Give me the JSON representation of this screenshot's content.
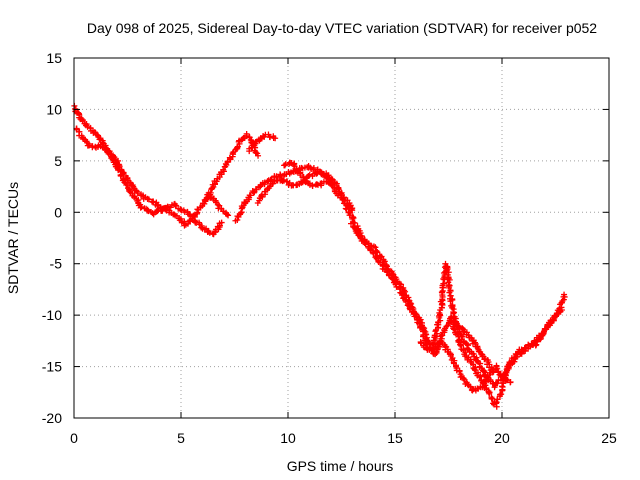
{
  "chart_data": {
    "type": "scatter",
    "title": "Day 098 of 2025, Sidereal Day-to-day VTEC variation (SDTVAR) for receiver p052",
    "xlabel": "GPS time / hours",
    "ylabel": "SDTVAR / TECUs",
    "xlim": [
      0,
      25
    ],
    "ylim": [
      -20,
      15
    ],
    "xticks": [
      0,
      5,
      10,
      15,
      20,
      25
    ],
    "yticks": [
      -20,
      -15,
      -10,
      -5,
      0,
      5,
      10,
      15
    ],
    "grid": true,
    "marker": "+",
    "color": "#ff0000",
    "series": [
      {
        "name": "track-1",
        "points": [
          [
            0.0,
            10.3
          ],
          [
            0.2,
            9.5
          ],
          [
            0.5,
            8.6
          ],
          [
            0.8,
            8.0
          ],
          [
            1.2,
            7.2
          ],
          [
            1.6,
            6.0
          ],
          [
            2.0,
            5.0
          ],
          [
            2.4,
            3.6
          ],
          [
            2.8,
            2.3
          ],
          [
            3.3,
            1.4
          ],
          [
            3.8,
            0.9
          ],
          [
            4.3,
            0.2
          ],
          [
            4.8,
            -0.4
          ],
          [
            5.2,
            -1.2
          ],
          [
            5.6,
            -0.4
          ],
          [
            6.0,
            0.8
          ],
          [
            6.4,
            1.6
          ],
          [
            6.8,
            0.5
          ],
          [
            7.2,
            -0.3
          ]
        ]
      },
      {
        "name": "track-2",
        "points": [
          [
            0.1,
            8.2
          ],
          [
            0.4,
            7.2
          ],
          [
            0.8,
            6.3
          ],
          [
            1.3,
            6.5
          ],
          [
            1.8,
            5.3
          ],
          [
            2.3,
            3.2
          ],
          [
            2.7,
            1.8
          ],
          [
            3.2,
            0.4
          ],
          [
            3.7,
            -0.1
          ],
          [
            4.2,
            0.3
          ],
          [
            4.7,
            0.7
          ],
          [
            5.2,
            0.1
          ],
          [
            5.7,
            -0.9
          ],
          [
            6.2,
            -1.8
          ],
          [
            6.5,
            -2.2
          ],
          [
            6.9,
            -1.0
          ]
        ]
      },
      {
        "name": "track-3",
        "points": [
          [
            6.2,
            1.5
          ],
          [
            6.6,
            3.0
          ],
          [
            7.0,
            4.2
          ],
          [
            7.4,
            5.6
          ],
          [
            7.8,
            7.0
          ],
          [
            8.1,
            7.5
          ],
          [
            8.4,
            6.5
          ],
          [
            8.6,
            5.5
          ]
        ]
      },
      {
        "name": "track-4",
        "points": [
          [
            8.2,
            6.0
          ],
          [
            8.6,
            7.0
          ],
          [
            9.0,
            7.5
          ],
          [
            9.4,
            7.2
          ]
        ]
      },
      {
        "name": "track-5",
        "points": [
          [
            7.6,
            -0.8
          ],
          [
            7.9,
            0.5
          ],
          [
            8.2,
            1.5
          ],
          [
            8.6,
            2.4
          ],
          [
            9.0,
            3.0
          ],
          [
            9.4,
            3.4
          ],
          [
            9.8,
            3.7
          ],
          [
            10.2,
            3.9
          ],
          [
            10.6,
            4.2
          ],
          [
            11.0,
            4.4
          ],
          [
            11.4,
            4.1
          ],
          [
            11.8,
            3.3
          ],
          [
            12.2,
            2.2
          ],
          [
            12.6,
            1.1
          ],
          [
            13.0,
            0.2
          ]
        ]
      },
      {
        "name": "track-6",
        "points": [
          [
            8.6,
            1.0
          ],
          [
            9.0,
            2.2
          ],
          [
            9.4,
            3.1
          ],
          [
            9.8,
            3.1
          ],
          [
            10.2,
            2.6
          ],
          [
            10.6,
            2.8
          ],
          [
            11.0,
            3.5
          ],
          [
            11.4,
            3.9
          ],
          [
            11.8,
            3.7
          ],
          [
            12.2,
            2.8
          ],
          [
            12.6,
            1.4
          ],
          [
            13.0,
            0.4
          ]
        ]
      },
      {
        "name": "track-7",
        "points": [
          [
            9.8,
            4.5
          ],
          [
            10.2,
            4.9
          ],
          [
            10.6,
            3.6
          ],
          [
            11.0,
            2.7
          ],
          [
            11.4,
            2.6
          ],
          [
            11.8,
            3.0
          ],
          [
            12.2,
            2.9
          ]
        ]
      },
      {
        "name": "track-8",
        "points": [
          [
            12.7,
            0.3
          ],
          [
            13.0,
            -0.5
          ],
          [
            13.3,
            -1.8
          ],
          [
            13.6,
            -2.8
          ],
          [
            14.0,
            -3.4
          ],
          [
            14.3,
            -4.2
          ],
          [
            14.6,
            -5.3
          ],
          [
            15.0,
            -6.3
          ],
          [
            15.3,
            -7.3
          ],
          [
            15.6,
            -8.5
          ],
          [
            15.9,
            -9.8
          ],
          [
            16.2,
            -11.3
          ],
          [
            16.5,
            -12.8
          ],
          [
            16.8,
            -13.8
          ],
          [
            17.0,
            -13.3
          ],
          [
            17.3,
            -11.5
          ],
          [
            17.6,
            -10.4
          ],
          [
            17.9,
            -12.0
          ],
          [
            18.2,
            -13.5
          ],
          [
            18.6,
            -14.8
          ],
          [
            19.0,
            -16.2
          ],
          [
            19.4,
            -17.6
          ],
          [
            19.7,
            -18.8
          ],
          [
            20.0,
            -17.3
          ],
          [
            20.3,
            -15.0
          ],
          [
            20.7,
            -14.0
          ],
          [
            21.2,
            -13.2
          ],
          [
            21.7,
            -12.2
          ],
          [
            22.2,
            -11.0
          ],
          [
            22.6,
            -10.0
          ],
          [
            22.9,
            -8.0
          ]
        ]
      },
      {
        "name": "track-9",
        "points": [
          [
            13.0,
            -1.2
          ],
          [
            13.4,
            -2.5
          ],
          [
            13.8,
            -3.5
          ],
          [
            14.2,
            -4.5
          ],
          [
            14.6,
            -5.8
          ],
          [
            15.0,
            -6.8
          ],
          [
            15.4,
            -8.2
          ],
          [
            15.8,
            -9.5
          ],
          [
            16.2,
            -10.5
          ],
          [
            16.5,
            -12.4
          ],
          [
            16.8,
            -13.0
          ],
          [
            17.1,
            -10.0
          ],
          [
            17.4,
            -5.0
          ],
          [
            17.7,
            -9.5
          ],
          [
            18.0,
            -11.8
          ],
          [
            18.4,
            -13.1
          ],
          [
            18.8,
            -14.3
          ],
          [
            19.2,
            -15.8
          ],
          [
            19.6,
            -16.9
          ],
          [
            20.0,
            -16.2
          ],
          [
            20.4,
            -14.5
          ],
          [
            20.8,
            -13.5
          ],
          [
            21.2,
            -13.0
          ],
          [
            21.6,
            -12.8
          ],
          [
            22.0,
            -11.5
          ],
          [
            22.4,
            -10.2
          ],
          [
            22.8,
            -9.5
          ]
        ]
      },
      {
        "name": "track-10",
        "points": [
          [
            16.2,
            -12.5
          ],
          [
            16.5,
            -13.5
          ],
          [
            16.8,
            -13.2
          ],
          [
            17.1,
            -12.5
          ],
          [
            17.4,
            -13.3
          ],
          [
            17.7,
            -14.4
          ],
          [
            18.0,
            -15.6
          ],
          [
            18.3,
            -16.5
          ],
          [
            18.6,
            -17.3
          ],
          [
            19.0,
            -17.1
          ],
          [
            19.4,
            -15.8
          ],
          [
            19.7,
            -15.0
          ],
          [
            20.0,
            -16.0
          ],
          [
            20.4,
            -16.5
          ]
        ]
      },
      {
        "name": "track-11",
        "points": [
          [
            17.6,
            -10.2
          ],
          [
            18.0,
            -11.0
          ],
          [
            18.4,
            -12.0
          ],
          [
            18.8,
            -13.0
          ],
          [
            19.2,
            -14.2
          ],
          [
            19.6,
            -15.5
          ]
        ]
      }
    ]
  }
}
